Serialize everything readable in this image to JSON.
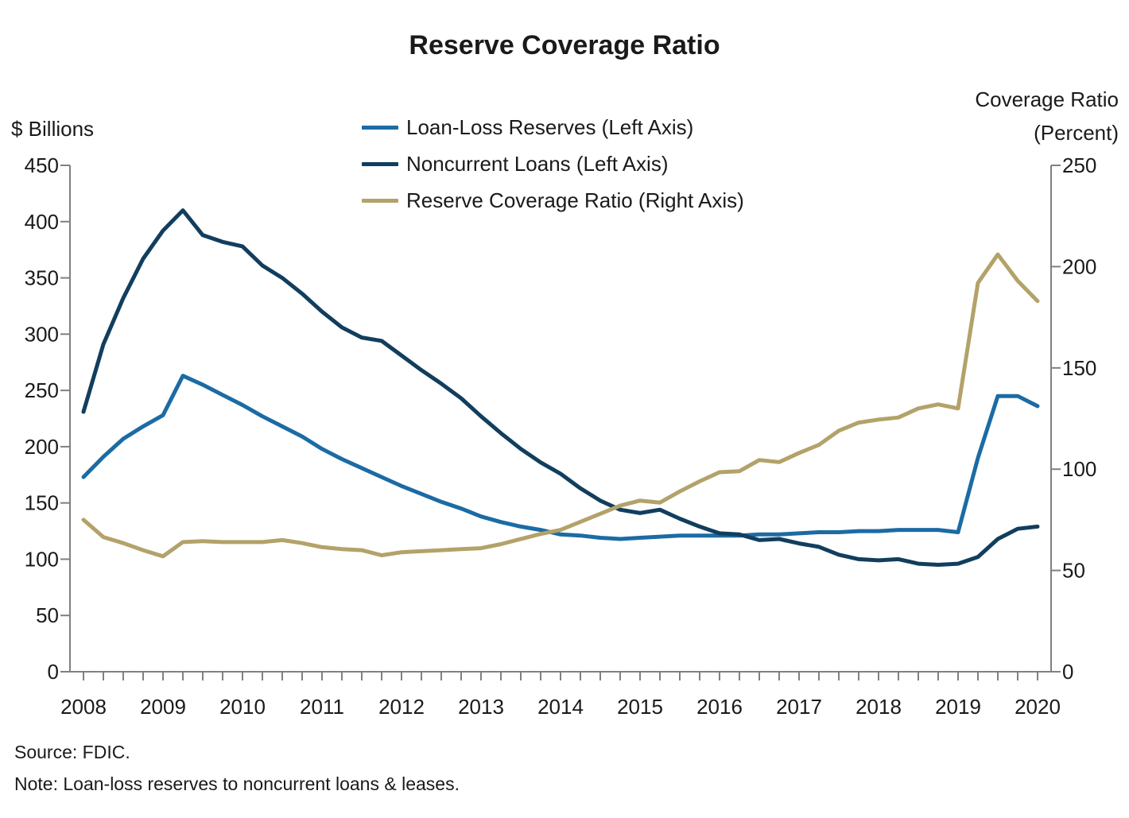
{
  "title": "Reserve Coverage Ratio",
  "left_axis": {
    "title": "$ Billions",
    "ticks": [
      450,
      400,
      350,
      300,
      250,
      200,
      150,
      100,
      50,
      0
    ]
  },
  "right_axis": {
    "title_line1": "Coverage Ratio",
    "title_line2": "(Percent)",
    "ticks": [
      250,
      200,
      150,
      100,
      50,
      0
    ]
  },
  "x_axis": {
    "year_labels": [
      "2008",
      "2009",
      "2010",
      "2011",
      "2012",
      "2013",
      "2014",
      "2015",
      "2016",
      "2017",
      "2018",
      "2019",
      "2020"
    ]
  },
  "legend": [
    {
      "label": "Loan-Loss Reserves (Left Axis)",
      "color": "#1b6ba4"
    },
    {
      "label": "Noncurrent Loans (Left Axis)",
      "color": "#123e5e"
    },
    {
      "label": "Reserve Coverage Ratio (Right Axis)",
      "color": "#b3a269"
    }
  ],
  "source": "Source: FDIC.",
  "note": "Note: Loan-loss reserves to noncurrent loans & leases.",
  "colors": {
    "reserves_line": "#1b6ba4",
    "noncurrent_line": "#123e5e",
    "ratio_line": "#b3a269",
    "axis": "#808080",
    "text": "#1a1a1a",
    "background": "#ffffff"
  },
  "chart_data": {
    "type": "line",
    "x_quarters": [
      "2008Q4",
      "2009Q1",
      "2009Q2",
      "2009Q3",
      "2009Q4",
      "2010Q1",
      "2010Q2",
      "2010Q3",
      "2010Q4",
      "2011Q1",
      "2011Q2",
      "2011Q3",
      "2011Q4",
      "2012Q1",
      "2012Q2",
      "2012Q3",
      "2012Q4",
      "2013Q1",
      "2013Q2",
      "2013Q3",
      "2013Q4",
      "2014Q1",
      "2014Q2",
      "2014Q3",
      "2014Q4",
      "2015Q1",
      "2015Q2",
      "2015Q3",
      "2015Q4",
      "2016Q1",
      "2016Q2",
      "2016Q3",
      "2016Q4",
      "2017Q1",
      "2017Q2",
      "2017Q3",
      "2017Q4",
      "2018Q1",
      "2018Q2",
      "2018Q3",
      "2018Q4",
      "2019Q1",
      "2019Q2",
      "2019Q3",
      "2019Q4",
      "2020Q1",
      "2020Q2",
      "2020Q3",
      "2020Q4"
    ],
    "series": [
      {
        "name": "Loan-Loss Reserves (Left Axis)",
        "axis": "left",
        "unit": "$ Billions",
        "color": "#1b6ba4",
        "values": [
          173,
          191,
          207,
          218,
          228,
          263,
          255,
          246,
          237,
          227,
          218,
          209,
          198,
          189,
          181,
          173,
          165,
          158,
          151,
          145,
          138,
          133,
          129,
          126,
          122,
          121,
          119,
          118,
          119,
          120,
          121,
          121,
          121,
          121,
          122,
          122,
          123,
          124,
          124,
          125,
          125,
          126,
          126,
          126,
          124,
          190,
          245,
          245,
          236
        ]
      },
      {
        "name": "Noncurrent Loans (Left Axis)",
        "axis": "left",
        "unit": "$ Billions",
        "color": "#123e5e",
        "values": [
          231,
          291,
          332,
          367,
          392,
          410,
          388,
          382,
          378,
          361,
          350,
          336,
          320,
          306,
          297,
          294,
          281,
          268,
          256,
          243,
          227,
          212,
          198,
          186,
          176,
          163,
          152,
          144,
          141,
          144,
          136,
          129,
          123,
          122,
          117,
          118,
          114,
          111,
          104,
          100,
          99,
          100,
          96,
          95,
          96,
          102,
          118,
          127,
          129
        ]
      },
      {
        "name": "Reserve Coverage Ratio (Right Axis)",
        "axis": "right",
        "unit": "Percent",
        "color": "#b3a269",
        "values": [
          75,
          66.5,
          63.5,
          60,
          57,
          64,
          64.5,
          64,
          64,
          64,
          65,
          63.5,
          61.5,
          60.5,
          60,
          57.5,
          59,
          59.5,
          60,
          60.5,
          61,
          63,
          65.5,
          68,
          70,
          74,
          78,
          82,
          84.5,
          83.5,
          89,
          94,
          98.5,
          99,
          104.5,
          103.5,
          108,
          112,
          119,
          123,
          124.5,
          125.5,
          130,
          132,
          130,
          192,
          206,
          193,
          183
        ]
      }
    ],
    "left_ylim": [
      0,
      450
    ],
    "right_ylim": [
      0,
      250
    ],
    "grid": false,
    "legend_position": "top-center",
    "x_tick_interval": "quarterly"
  }
}
